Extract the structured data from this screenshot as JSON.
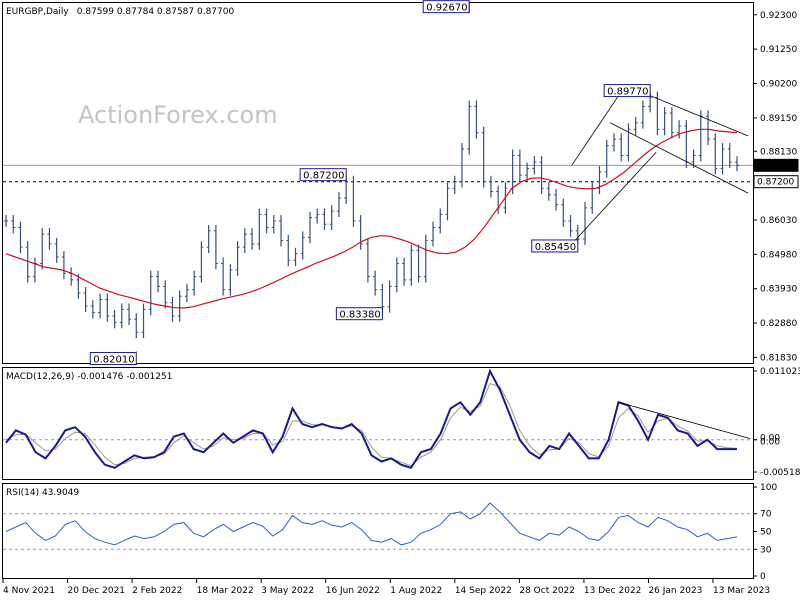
{
  "chart_data": [
    {
      "type": "candlestick",
      "title": "EURGBP,Daily",
      "ohlc_readout": "0.87599 0.87784 0.87587 0.87700",
      "watermark": "ActionForex.com",
      "ylim": [
        0.8166,
        0.9266
      ],
      "y_ticks": [
        "0.92300",
        "0.91250",
        "0.90200",
        "0.89150",
        "0.88130",
        "0.86030",
        "0.84980",
        "0.83930",
        "0.82880",
        "0.81830"
      ],
      "y_tick_values": [
        0.923,
        0.9125,
        0.902,
        0.8915,
        0.8813,
        0.8603,
        0.8498,
        0.8393,
        0.8288,
        0.8183
      ],
      "x_ticks": [
        "4 Nov 2021",
        "20 Dec 2021",
        "2 Feb 2022",
        "18 Mar 2022",
        "3 May 2022",
        "16 Jun 2022",
        "1 Aug 2022",
        "14 Sep 2022",
        "28 Oct 2022",
        "13 Dec 2022",
        "26 Jan 2023",
        "13 Mar 2023"
      ],
      "price_series_color": "#3a4e7a",
      "ma_color": "#d01020",
      "series": [
        {
          "name": "price",
          "values": [
            0.86,
            0.858,
            0.852,
            0.843,
            0.847,
            0.856,
            0.853,
            0.849,
            0.844,
            0.842,
            0.838,
            0.834,
            0.832,
            0.836,
            0.831,
            0.829,
            0.833,
            0.83,
            0.826,
            0.833,
            0.843,
            0.84,
            0.835,
            0.831,
            0.837,
            0.839,
            0.843,
            0.852,
            0.857,
            0.847,
            0.839,
            0.845,
            0.852,
            0.856,
            0.853,
            0.862,
            0.858,
            0.86,
            0.854,
            0.848,
            0.85,
            0.855,
            0.861,
            0.862,
            0.859,
            0.863,
            0.867,
            0.872,
            0.86,
            0.853,
            0.843,
            0.839,
            0.8338,
            0.84,
            0.847,
            0.842,
            0.851,
            0.843,
            0.854,
            0.858,
            0.862,
            0.87,
            0.872,
            0.882,
            0.895,
            0.887,
            0.872,
            0.869,
            0.864,
            0.87,
            0.88,
            0.874,
            0.876,
            0.878,
            0.87,
            0.868,
            0.865,
            0.86,
            0.857,
            0.8545,
            0.864,
            0.87,
            0.875,
            0.883,
            0.885,
            0.88,
            0.888,
            0.89,
            0.895,
            0.8977,
            0.888,
            0.893,
            0.887,
            0.889,
            0.878,
            0.88,
            0.892,
            0.885,
            0.876,
            0.882,
            0.878,
            0.877
          ]
        },
        {
          "name": "MA",
          "values": [
            0.85,
            0.849,
            0.848,
            0.847,
            0.846,
            0.8455,
            0.845,
            0.844,
            0.8425,
            0.841,
            0.8395,
            0.8385,
            0.8375,
            0.8368,
            0.836,
            0.8352,
            0.8345,
            0.834,
            0.8335,
            0.8334,
            0.8338,
            0.8346,
            0.8354,
            0.8362,
            0.8368,
            0.8374,
            0.8382,
            0.8392,
            0.8405,
            0.8418,
            0.8432,
            0.8445,
            0.8457,
            0.847,
            0.8481,
            0.8492,
            0.8505,
            0.852,
            0.8538,
            0.855,
            0.8555,
            0.8553,
            0.8545,
            0.8535,
            0.8522,
            0.851,
            0.8502,
            0.85,
            0.8505,
            0.852,
            0.8545,
            0.858,
            0.862,
            0.866,
            0.87,
            0.872,
            0.873,
            0.8732,
            0.8725,
            0.8715,
            0.8705,
            0.87,
            0.8698,
            0.87,
            0.8712,
            0.873,
            0.875,
            0.8775,
            0.88,
            0.8822,
            0.884,
            0.8855,
            0.8868,
            0.8875,
            0.888,
            0.888,
            0.8875,
            0.8872,
            0.887
          ]
        }
      ],
      "annotations": [
        {
          "label": "0.92670",
          "value": 0.9267
        },
        {
          "label": "0.89770",
          "value": 0.8977
        },
        {
          "label": "0.87200",
          "value": 0.872
        },
        {
          "label": "0.85450",
          "value": 0.8545
        },
        {
          "label": "0.83380",
          "value": 0.8338
        },
        {
          "label": "0.82010",
          "value": 0.8201
        }
      ],
      "price_tags": [
        {
          "label": "0.87700",
          "value": 0.877,
          "line": "solid"
        },
        {
          "label": "0.87200",
          "value": 0.872,
          "line": "dashed"
        }
      ],
      "trend_channel": "descending channel from 0.89770 high",
      "grid": false
    },
    {
      "type": "line",
      "title": "MACD(12,26,9) -0.001476 -0.001251",
      "ylim": [
        -0.0063,
        0.0115
      ],
      "y_ticks": [
        "0.011023",
        "0.00",
        "0.00",
        "-0.005182"
      ],
      "y_tick_values": [
        0.011023,
        0.0,
        0.0,
        -0.005182
      ],
      "zero_line": "dashed",
      "macd_color": "#1a1a8c",
      "signal_color": "#999999",
      "series": [
        {
          "name": "MACD",
          "values": [
            -0.0005,
            0.0015,
            0.0008,
            -0.002,
            -0.003,
            -0.001,
            0.0015,
            0.002,
            0.0005,
            -0.002,
            -0.004,
            -0.0045,
            -0.0035,
            -0.0025,
            -0.003,
            -0.0028,
            -0.002,
            0.0005,
            0.001,
            -0.0015,
            -0.002,
            -0.0005,
            0.001,
            -0.0005,
            0.0005,
            0.0015,
            0.001,
            -0.002,
            0.0005,
            0.005,
            0.0025,
            0.002,
            0.0025,
            0.002,
            0.0018,
            0.0025,
            0.001,
            -0.0025,
            -0.0035,
            -0.003,
            -0.004,
            -0.0045,
            -0.002,
            -0.0015,
            0.001,
            0.005,
            0.006,
            0.004,
            0.006,
            0.011,
            0.008,
            0.004,
            0.0,
            -0.002,
            -0.003,
            -0.001,
            -0.0015,
            0.001,
            -0.001,
            -0.003,
            -0.003,
            0.0,
            0.006,
            0.0055,
            0.003,
            0.0,
            0.004,
            0.0035,
            0.0015,
            0.001,
            -0.001,
            0.0,
            -0.0015,
            -0.0015,
            -0.0015
          ]
        },
        {
          "name": "Signal",
          "values": [
            0.0,
            0.0008,
            0.0009,
            -0.0005,
            -0.0018,
            -0.0015,
            0.0002,
            0.0012,
            0.001,
            -0.0008,
            -0.0028,
            -0.004,
            -0.0038,
            -0.003,
            -0.0028,
            -0.0027,
            -0.0023,
            -0.0005,
            0.0006,
            -0.0005,
            -0.0015,
            -0.001,
            0.0003,
            0.0,
            0.0002,
            0.001,
            0.0011,
            -0.0008,
            -0.0003,
            0.003,
            0.003,
            0.0024,
            0.0024,
            0.0021,
            0.0019,
            0.0022,
            0.0015,
            -0.0012,
            -0.0028,
            -0.003,
            -0.0036,
            -0.0042,
            -0.0028,
            -0.002,
            0.0,
            0.0035,
            0.0052,
            0.0045,
            0.0054,
            0.009,
            0.0085,
            0.0055,
            0.0015,
            -0.001,
            -0.0024,
            -0.0016,
            -0.0015,
            0.0002,
            -0.0005,
            -0.0022,
            -0.0028,
            -0.001,
            0.0035,
            0.005,
            0.0038,
            0.0012,
            0.003,
            0.0034,
            0.0022,
            0.0014,
            -0.0002,
            -0.0002,
            -0.001,
            -0.0013,
            -0.0014
          ]
        }
      ],
      "trendline": "descending from Dec 2022 MACD peak"
    },
    {
      "type": "line",
      "title": "RSI(14) 43.9049",
      "ylim": [
        0,
        100
      ],
      "y_ticks": [
        "100",
        "70",
        "50",
        "30",
        "0"
      ],
      "y_tick_values": [
        100,
        70,
        50,
        30,
        0
      ],
      "levels_dashed": [
        70,
        30
      ],
      "series_color": "#3060c0",
      "series": [
        {
          "name": "RSI",
          "values": [
            50,
            55,
            60,
            48,
            40,
            45,
            58,
            62,
            50,
            42,
            38,
            35,
            40,
            45,
            42,
            44,
            50,
            58,
            60,
            48,
            44,
            52,
            58,
            50,
            55,
            60,
            56,
            45,
            52,
            68,
            60,
            58,
            62,
            57,
            55,
            60,
            52,
            40,
            38,
            42,
            35,
            38,
            48,
            52,
            58,
            70,
            72,
            64,
            70,
            82,
            72,
            60,
            48,
            44,
            40,
            48,
            46,
            55,
            50,
            42,
            40,
            50,
            66,
            68,
            60,
            55,
            66,
            62,
            55,
            52,
            44,
            48,
            40,
            42,
            43.9
          ]
        }
      ]
    }
  ]
}
